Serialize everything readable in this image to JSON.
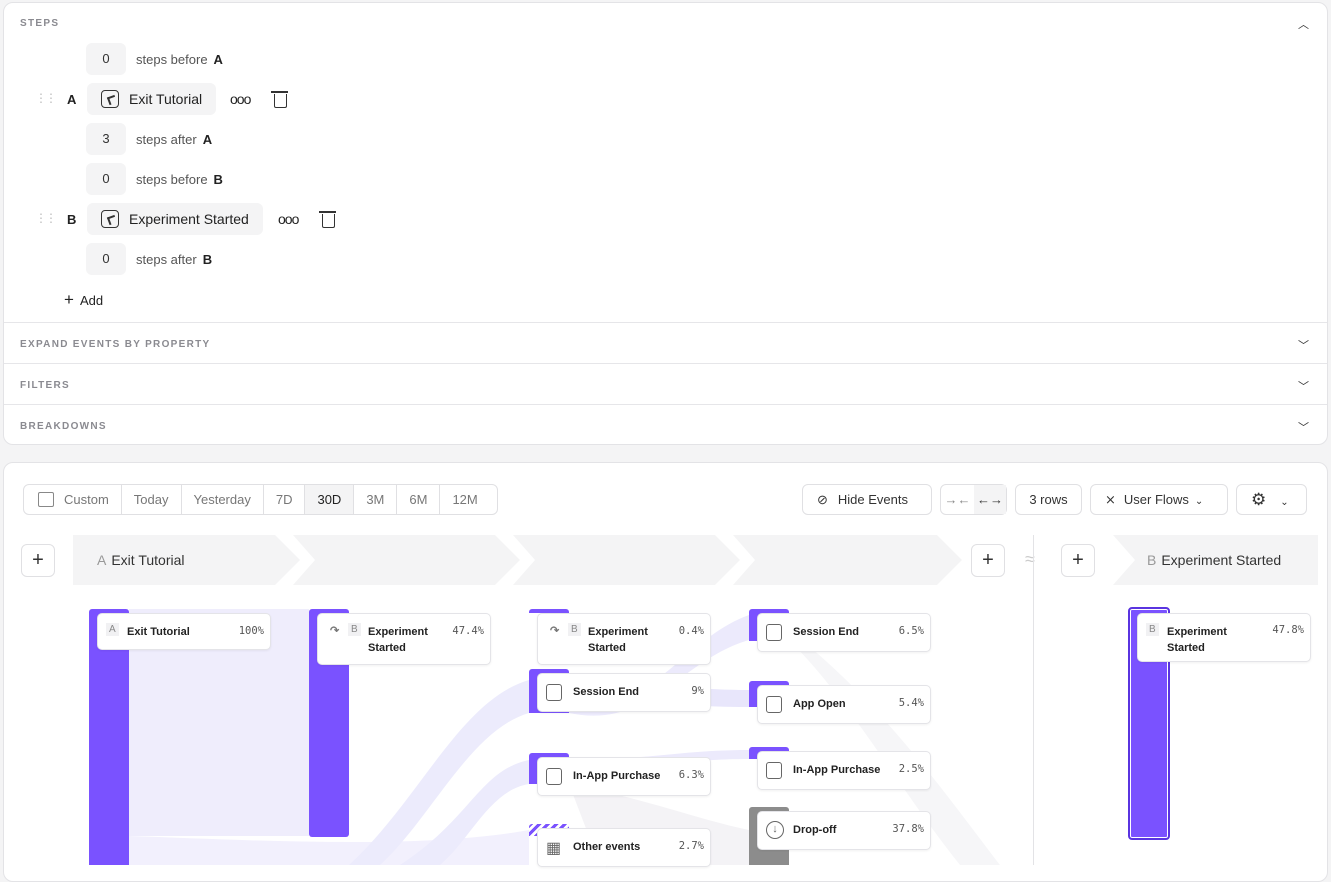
{
  "steps_section": {
    "title": "STEPS",
    "rows": [
      {
        "count": "0",
        "text": "steps before",
        "step": "A"
      },
      {
        "count": "3",
        "text": "steps after",
        "step": "A"
      },
      {
        "count": "0",
        "text": "steps before",
        "step": "B"
      },
      {
        "count": "0",
        "text": "steps after",
        "step": "B"
      }
    ],
    "events": [
      {
        "letter": "A",
        "name": "Exit Tutorial"
      },
      {
        "letter": "B",
        "name": "Experiment Started"
      }
    ],
    "add_label": "Add"
  },
  "sections": [
    "EXPAND EVENTS BY PROPERTY",
    "FILTERS",
    "BREAKDOWNS"
  ],
  "toolbar": {
    "date_ranges": [
      "Custom",
      "Today",
      "Yesterday",
      "7D",
      "30D",
      "3M",
      "6M",
      "12M"
    ],
    "active_range": "30D",
    "hide_events": "Hide Events",
    "rows": "3 rows",
    "view": "User Flows"
  },
  "flow": {
    "header_start": {
      "letter": "A",
      "name": "Exit Tutorial"
    },
    "header_end": {
      "letter": "B",
      "name": "Experiment Started"
    },
    "gap_symbol": "≈",
    "accent": "#7a52ff",
    "dropoff_color": "#8c8c8c",
    "nodes": [
      {
        "column": 0,
        "letter": "A",
        "name": "Exit Tutorial",
        "pct": "100%"
      },
      {
        "column": 1,
        "letter": "B",
        "name": "Experiment Started",
        "pct": "47.4%"
      },
      {
        "column": 2,
        "letter": "B",
        "name": "Experiment Started",
        "pct": "0.4%"
      },
      {
        "column": 2,
        "name": "Session End",
        "pct": "9%"
      },
      {
        "column": 2,
        "name": "In-App Purchase",
        "pct": "6.3%"
      },
      {
        "column": 2,
        "name": "Other events",
        "pct": "2.7%"
      },
      {
        "column": 3,
        "name": "Session End",
        "pct": "6.5%"
      },
      {
        "column": 3,
        "name": "App Open",
        "pct": "5.4%"
      },
      {
        "column": 3,
        "name": "In-App Purchase",
        "pct": "2.5%"
      },
      {
        "column": 3,
        "name": "Drop-off",
        "pct": "37.8%"
      },
      {
        "column": "end",
        "letter": "B",
        "name": "Experiment Started",
        "pct": "47.8%"
      }
    ]
  }
}
